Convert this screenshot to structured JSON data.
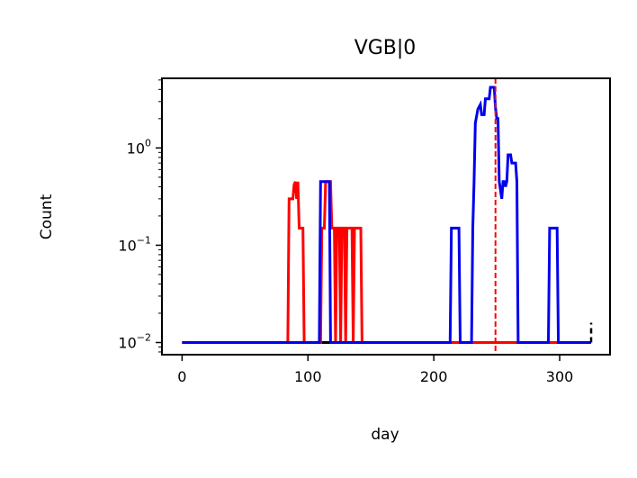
{
  "chart_data": {
    "type": "line",
    "title": "VGB|0",
    "xlabel": "day",
    "ylabel": "Count",
    "yscale": "log",
    "xlim": [
      -16,
      340
    ],
    "ylim": [
      0.0075,
      5.2
    ],
    "x_ticks": [
      0,
      100,
      200,
      300
    ],
    "x_tick_labels": [
      "0",
      "100",
      "200",
      "300"
    ],
    "y_ticks": [
      0.01,
      0.1,
      1
    ],
    "y_tick_labels": [
      {
        "base": "10",
        "exp": "−2"
      },
      {
        "base": "10",
        "exp": "−1"
      },
      {
        "base": "10",
        "exp": "0"
      }
    ],
    "grid": false,
    "vline": {
      "x": 249,
      "color": "#ff0000",
      "style": "dashed"
    },
    "series": [
      {
        "color": "#000000",
        "points": [
          [
            0,
            0.01
          ],
          [
            325,
            0.01
          ]
        ]
      },
      {
        "color": "#ff0000",
        "points": [
          [
            0,
            0.01
          ],
          [
            84,
            0.01
          ],
          [
            85,
            0.3
          ],
          [
            88,
            0.3
          ],
          [
            89,
            0.42
          ],
          [
            90,
            0.45
          ],
          [
            91,
            0.3
          ],
          [
            92,
            0.45
          ],
          [
            93,
            0.15
          ],
          [
            96,
            0.15
          ],
          [
            97,
            0.01
          ],
          [
            110,
            0.01
          ],
          [
            111,
            0.15
          ],
          [
            113,
            0.15
          ],
          [
            114,
            0.45
          ],
          [
            118,
            0.45
          ],
          [
            119,
            0.15
          ],
          [
            121,
            0.15
          ],
          [
            122,
            0.01
          ],
          [
            123,
            0.15
          ],
          [
            125,
            0.15
          ],
          [
            126,
            0.01
          ],
          [
            127,
            0.15
          ],
          [
            129,
            0.15
          ],
          [
            130,
            0.01
          ],
          [
            131,
            0.15
          ],
          [
            135,
            0.15
          ],
          [
            136,
            0.01
          ],
          [
            137,
            0.15
          ],
          [
            142,
            0.15
          ],
          [
            143,
            0.01
          ],
          [
            325,
            0.01
          ]
        ]
      },
      {
        "color": "#0000ee",
        "points": [
          [
            0,
            0.01
          ],
          [
            109,
            0.01
          ],
          [
            110,
            0.45
          ],
          [
            117,
            0.45
          ],
          [
            118,
            0.01
          ],
          [
            213,
            0.01
          ],
          [
            214,
            0.15
          ],
          [
            220,
            0.15
          ],
          [
            221,
            0.01
          ],
          [
            230,
            0.01
          ],
          [
            231,
            0.15
          ],
          [
            232,
            0.45
          ],
          [
            233,
            1.8
          ],
          [
            235,
            2.5
          ],
          [
            237,
            2.8
          ],
          [
            238,
            2.2
          ],
          [
            240,
            2.2
          ],
          [
            241,
            3.2
          ],
          [
            244,
            3.2
          ],
          [
            245,
            4.2
          ],
          [
            248,
            4.2
          ],
          [
            249,
            2.6
          ],
          [
            250,
            2.0
          ],
          [
            251,
            2.0
          ],
          [
            252,
            0.45
          ],
          [
            254,
            0.3
          ],
          [
            255,
            0.45
          ],
          [
            256,
            0.45
          ],
          [
            257,
            0.4
          ],
          [
            258,
            0.45
          ],
          [
            259,
            0.85
          ],
          [
            261,
            0.85
          ],
          [
            262,
            0.7
          ],
          [
            265,
            0.7
          ],
          [
            266,
            0.45
          ],
          [
            267,
            0.01
          ],
          [
            291,
            0.01
          ],
          [
            292,
            0.15
          ],
          [
            298,
            0.15
          ],
          [
            299,
            0.01
          ],
          [
            325,
            0.01
          ]
        ]
      }
    ],
    "annotations": [
      {
        "type": "black-dashed-segment",
        "x": 325,
        "y_from": 0.01,
        "y_to": 0.016
      }
    ]
  }
}
